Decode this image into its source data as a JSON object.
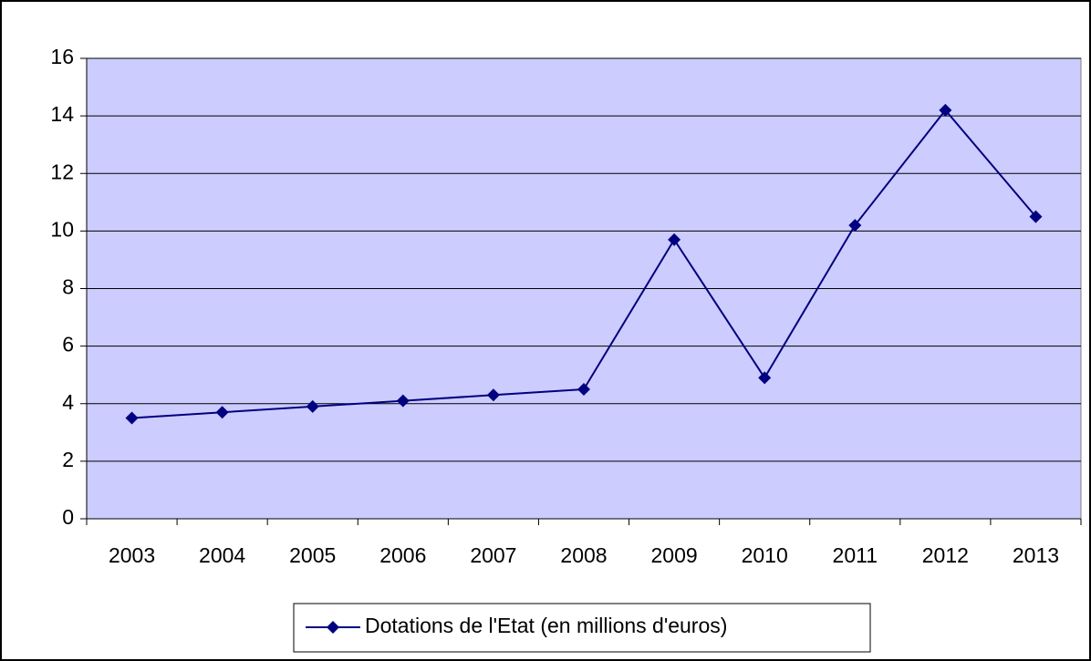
{
  "chart_data": {
    "type": "line",
    "categories": [
      "2003",
      "2004",
      "2005",
      "2006",
      "2007",
      "2008",
      "2009",
      "2010",
      "2011",
      "2012",
      "2013"
    ],
    "series": [
      {
        "name": "Dotations de l'Etat (en millions d'euros)",
        "color": "#000080",
        "values": [
          3.5,
          3.7,
          3.9,
          4.1,
          4.3,
          4.5,
          9.7,
          4.9,
          10.2,
          14.2,
          10.5
        ]
      }
    ],
    "ylim": [
      0,
      16
    ],
    "yticks": [
      0,
      2,
      4,
      6,
      8,
      10,
      12,
      14,
      16
    ],
    "grid": true,
    "plot_background": "#ccccff",
    "legend": "bottom"
  }
}
